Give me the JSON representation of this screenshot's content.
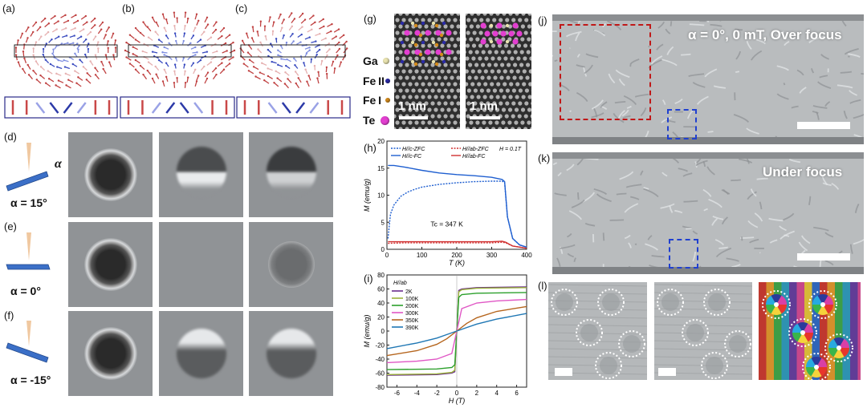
{
  "labels": {
    "a": "(a)",
    "b": "(b)",
    "c": "(c)",
    "d": "(d)",
    "e": "(e)",
    "f": "(f)",
    "g": "(g)",
    "h": "(h)",
    "i": "(i)",
    "j": "(j)",
    "k": "(k)",
    "l": "(l)"
  },
  "tilt": {
    "alpha_symbol": "α",
    "rows": [
      "α = 15°",
      "α = 0°",
      "α = -15°"
    ]
  },
  "stem": {
    "elements": [
      "Ga",
      "Fe II",
      "Fe I",
      "Te"
    ],
    "element_colors": [
      "#e9e3b0",
      "#2a2aa6",
      "#d48b1c",
      "#e23fd0"
    ],
    "scalebar_left": "1 nm",
    "scalebar_right": "1 nm"
  },
  "lorentz": {
    "j_caption": "α = 0°, 0 mT, Over focus",
    "k_caption": "Under focus"
  },
  "chart_data": [
    {
      "type": "line",
      "panel": "(h)",
      "xlabel": "T (K)",
      "ylabel": "M (emu/g)",
      "xlim": [
        0,
        400
      ],
      "ylim": [
        0,
        20
      ],
      "xticks": [
        0,
        100,
        200,
        300,
        400
      ],
      "yticks": [
        0,
        5,
        10,
        15,
        20
      ],
      "field_label": "H = 0.1T",
      "annotation": "Tc = 347 K",
      "legend_position": "top",
      "series": [
        {
          "name": "H//c-ZFC",
          "color": "#1f5fd0",
          "style": "dotted",
          "x": [
            3,
            10,
            20,
            40,
            60,
            80,
            100,
            150,
            200,
            250,
            300,
            330,
            337,
            345,
            360,
            380,
            400
          ],
          "y": [
            2.0,
            6.5,
            8.2,
            9.8,
            10.6,
            11.1,
            11.5,
            12.0,
            12.3,
            12.5,
            12.6,
            12.6,
            12.3,
            6.0,
            2.0,
            0.8,
            0.4
          ]
        },
        {
          "name": "H//ab-ZFC",
          "color": "#d03030",
          "style": "dotted",
          "x": [
            3,
            50,
            100,
            200,
            300,
            330,
            340,
            360,
            400
          ],
          "y": [
            1.1,
            1.2,
            1.2,
            1.2,
            1.2,
            1.3,
            1.2,
            0.6,
            0.2
          ]
        },
        {
          "name": "H//c-FC",
          "color": "#1f5fd0",
          "style": "solid",
          "x": [
            3,
            20,
            50,
            100,
            150,
            200,
            250,
            300,
            330,
            337,
            345,
            360,
            380,
            400
          ],
          "y": [
            15.5,
            15.5,
            15.2,
            14.6,
            14.1,
            13.8,
            13.6,
            13.3,
            12.9,
            12.5,
            6.0,
            2.0,
            0.8,
            0.4
          ]
        },
        {
          "name": "H//ab-FC",
          "color": "#d03030",
          "style": "solid",
          "x": [
            3,
            50,
            100,
            200,
            300,
            330,
            340,
            360,
            400
          ],
          "y": [
            1.4,
            1.4,
            1.4,
            1.4,
            1.4,
            1.5,
            1.3,
            0.6,
            0.2
          ]
        }
      ]
    },
    {
      "type": "line",
      "panel": "(i)",
      "xlabel": "H (T)",
      "ylabel": "M (emu/g)",
      "xlim": [
        -7,
        7
      ],
      "ylim": [
        -80,
        80
      ],
      "xticks": [
        -6,
        -4,
        -2,
        0,
        2,
        4,
        6
      ],
      "yticks": [
        -80,
        -60,
        -40,
        -20,
        0,
        20,
        40,
        60,
        80
      ],
      "legend_title": "H//ab",
      "series": [
        {
          "name": "2K",
          "color": "#6a2d8c",
          "x": [
            -7,
            -2,
            -0.5,
            -0.2,
            0.2,
            0.5,
            2,
            7
          ],
          "y": [
            -63,
            -62,
            -60,
            -58,
            58,
            60,
            62,
            63
          ]
        },
        {
          "name": "100K",
          "color": "#9bb33a",
          "x": [
            -7,
            -2,
            -0.5,
            -0.2,
            0.2,
            0.5,
            2,
            7
          ],
          "y": [
            -62,
            -61,
            -59,
            -56,
            56,
            59,
            61,
            62
          ]
        },
        {
          "name": "200K",
          "color": "#2ca02c",
          "x": [
            -7,
            -2,
            -0.5,
            -0.2,
            0.2,
            0.5,
            2,
            7
          ],
          "y": [
            -55,
            -54,
            -52,
            -48,
            48,
            52,
            54,
            55
          ]
        },
        {
          "name": "300K",
          "color": "#e057c5",
          "x": [
            -7,
            -4,
            -2,
            -0.5,
            0,
            0.5,
            2,
            4,
            7
          ],
          "y": [
            -45,
            -43,
            -40,
            -32,
            0,
            32,
            40,
            43,
            45
          ]
        },
        {
          "name": "350K",
          "color": "#b5651d",
          "x": [
            -7,
            -4,
            -2,
            -1,
            0,
            1,
            2,
            4,
            7
          ],
          "y": [
            -35,
            -28,
            -19,
            -11,
            0,
            11,
            19,
            28,
            35
          ]
        },
        {
          "name": "390K",
          "color": "#1f77b4",
          "x": [
            -7,
            -4,
            -2,
            -1,
            0,
            1,
            2,
            4,
            7
          ],
          "y": [
            -25,
            -17,
            -10,
            -5,
            0,
            5,
            10,
            17,
            25
          ]
        }
      ]
    }
  ]
}
